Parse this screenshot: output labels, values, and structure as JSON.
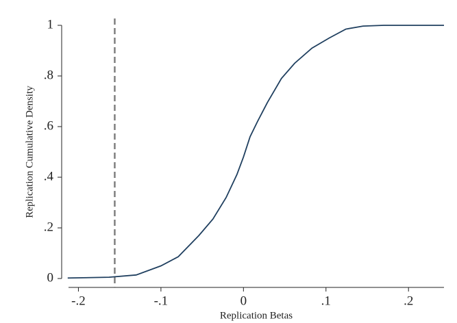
{
  "chart_data": {
    "type": "line",
    "xlabel": "Replication Betas",
    "ylabel": "Replication Cumulative Density",
    "x": [
      -0.213,
      -0.163,
      -0.13,
      -0.1,
      -0.079,
      -0.054,
      -0.037,
      -0.021,
      -0.008,
      0,
      0.008,
      0.017,
      0.029,
      0.046,
      0.062,
      0.083,
      0.104,
      0.124,
      0.145,
      0.17,
      0.243
    ],
    "series": [
      {
        "color": "#1f3f5f",
        "values": [
          0.002,
          0.005,
          0.014,
          0.05,
          0.086,
          0.17,
          0.235,
          0.32,
          0.41,
          0.48,
          0.56,
          0.62,
          0.695,
          0.79,
          0.85,
          0.91,
          0.95,
          0.985,
          0.997,
          1,
          1
        ]
      }
    ],
    "reference_x": -0.156,
    "reference_color": "#7f7f7f",
    "xlim": [
      -0.212,
      0.243
    ],
    "ylim": [
      0,
      1
    ],
    "xticks": [
      {
        "value": -0.2,
        "label": "-.2"
      },
      {
        "value": -0.1,
        "label": "-.1"
      },
      0,
      {
        "value": 0.1,
        "label": ".1"
      },
      {
        "value": 0.2,
        "label": ".2"
      }
    ],
    "yticks": [
      0,
      {
        "value": 0.2,
        "label": ".2"
      },
      {
        "value": 0.4,
        "label": ".4"
      },
      {
        "value": 0.6,
        "label": ".6"
      },
      {
        "value": 0.8,
        "label": ".8"
      },
      1
    ]
  }
}
